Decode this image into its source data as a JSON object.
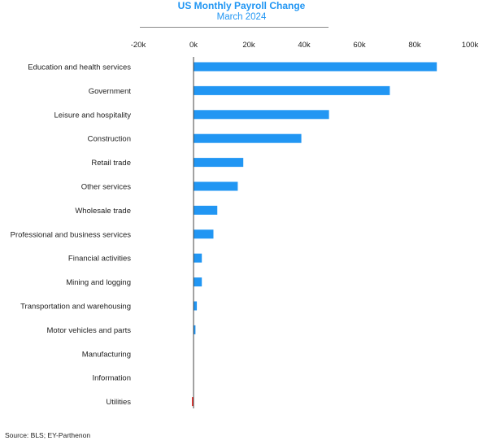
{
  "chart_data": {
    "type": "bar",
    "orientation": "horizontal",
    "title": "US Monthly Payroll Change",
    "subtitle": "March 2024",
    "categories": [
      "Education and health services",
      "Government",
      "Leisure and hospitality",
      "Construction",
      "Retail trade",
      "Other services",
      "Wholesale trade",
      "Professional and business services",
      "Financial activities",
      "Mining and logging",
      "Transportation and warehousing",
      "Motor vehicles and parts",
      "Manufacturing",
      "Information",
      "Utilities"
    ],
    "values": [
      88000,
      71000,
      49000,
      39000,
      18000,
      16000,
      8600,
      7200,
      3000,
      3000,
      1200,
      700,
      0,
      0,
      -600
    ],
    "xlim": [
      -20000,
      100000
    ],
    "xticks": [
      -20000,
      0,
      20000,
      40000,
      60000,
      80000,
      100000
    ],
    "xtick_labels": [
      "-20k",
      "0k",
      "20k",
      "40k",
      "60k",
      "80k",
      "100k"
    ],
    "axis_position": "top",
    "grid": false,
    "colors": {
      "positive": "#2196f3",
      "negative": "#e53935",
      "axis": "#444444",
      "title": "#2196f3"
    }
  },
  "source": "Source: BLS; EY-Parthenon"
}
